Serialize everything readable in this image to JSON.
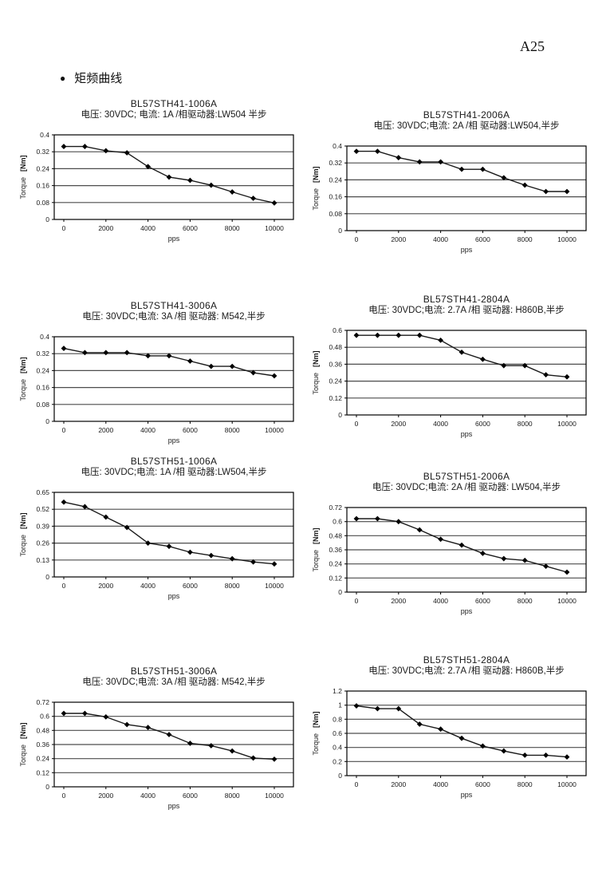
{
  "page": {
    "page_number": "A25",
    "bullet": "●",
    "section_title": "矩频曲线"
  },
  "chart_data": [
    {
      "type": "line",
      "title": "BL57STH41-1006A",
      "subtitle": "电压: 30VDC; 电流: 1A /相驱动器:LW504 半步",
      "xlabel": "pps",
      "ylabel": "Torque",
      "ylabel_unit": "[Nm]",
      "x": [
        0,
        1000,
        2000,
        3000,
        4000,
        5000,
        6000,
        7000,
        8000,
        9000,
        10000
      ],
      "values": [
        0.345,
        0.345,
        0.325,
        0.315,
        0.25,
        0.2,
        0.185,
        0.162,
        0.13,
        0.1,
        0.078
      ],
      "ylim": [
        0,
        0.4
      ],
      "yticks": [
        0,
        0.08,
        0.16,
        0.24,
        0.32,
        0.4
      ],
      "xticks": [
        0,
        2000,
        4000,
        6000,
        8000,
        10000
      ],
      "grid": "horizontal",
      "legend": "none",
      "marker": "diamond",
      "line_color": "#000000"
    },
    {
      "type": "line",
      "title": "BL57STH41-2006A",
      "subtitle": "电压: 30VDC;电流: 2A /相 驱动器:LW504,半步",
      "xlabel": "pps",
      "ylabel": "Torque",
      "ylabel_unit": "[Nm]",
      "x": [
        0,
        1000,
        2000,
        3000,
        4000,
        5000,
        6000,
        7000,
        8000,
        9000,
        10000
      ],
      "values": [
        0.375,
        0.375,
        0.345,
        0.325,
        0.325,
        0.29,
        0.29,
        0.25,
        0.215,
        0.185,
        0.185
      ],
      "ylim": [
        0,
        0.4
      ],
      "yticks": [
        0,
        0.08,
        0.16,
        0.24,
        0.32,
        0.4
      ],
      "xticks": [
        0,
        2000,
        4000,
        6000,
        8000,
        10000
      ],
      "grid": "horizontal",
      "legend": "none",
      "marker": "diamond",
      "line_color": "#000000"
    },
    {
      "type": "line",
      "title": "BL57STH41-3006A",
      "subtitle": "电压: 30VDC;电流: 3A /相  驱动器: M542,半步",
      "xlabel": "pps",
      "ylabel": "Torque",
      "ylabel_unit": "[Nm]",
      "x": [
        0,
        1000,
        2000,
        3000,
        4000,
        5000,
        6000,
        7000,
        8000,
        9000,
        10000
      ],
      "values": [
        0.345,
        0.325,
        0.325,
        0.325,
        0.31,
        0.31,
        0.285,
        0.26,
        0.26,
        0.23,
        0.215
      ],
      "ylim": [
        0,
        0.4
      ],
      "yticks": [
        0,
        0.08,
        0.16,
        0.24,
        0.32,
        0.4
      ],
      "xticks": [
        0,
        2000,
        4000,
        6000,
        8000,
        10000
      ],
      "grid": "horizontal",
      "legend": "none",
      "marker": "diamond",
      "line_color": "#000000"
    },
    {
      "type": "line",
      "title": "BL57STH41-2804A",
      "subtitle": "电压: 30VDC;电流: 2.7A /相 驱动器: H860B,半步",
      "xlabel": "pps",
      "ylabel": "Torque",
      "ylabel_unit": "[Nm]",
      "x": [
        0,
        1000,
        2000,
        3000,
        4000,
        5000,
        6000,
        7000,
        8000,
        9000,
        10000
      ],
      "values": [
        0.565,
        0.565,
        0.565,
        0.565,
        0.53,
        0.445,
        0.395,
        0.35,
        0.35,
        0.285,
        0.27
      ],
      "ylim": [
        0,
        0.6
      ],
      "yticks": [
        0,
        0.12,
        0.24,
        0.36,
        0.48,
        0.6
      ],
      "xticks": [
        0,
        2000,
        4000,
        6000,
        8000,
        10000
      ],
      "grid": "horizontal",
      "legend": "none",
      "marker": "diamond",
      "line_color": "#000000"
    },
    {
      "type": "line",
      "title": "BL57STH51-1006A",
      "subtitle": "电压: 30VDC;电流: 1A /相  驱动器:LW504,半步",
      "xlabel": "pps",
      "ylabel": "Torque",
      "ylabel_unit": "[Nm]",
      "x": [
        0,
        1000,
        2000,
        3000,
        4000,
        5000,
        6000,
        7000,
        8000,
        9000,
        10000
      ],
      "values": [
        0.575,
        0.54,
        0.46,
        0.38,
        0.26,
        0.235,
        0.19,
        0.165,
        0.14,
        0.115,
        0.1
      ],
      "ylim": [
        0,
        0.65
      ],
      "yticks": [
        0,
        0.13,
        0.26,
        0.39,
        0.52,
        0.65
      ],
      "xticks": [
        0,
        2000,
        4000,
        6000,
        8000,
        10000
      ],
      "grid": "horizontal",
      "legend": "none",
      "marker": "diamond",
      "line_color": "#000000"
    },
    {
      "type": "line",
      "title": "BL57STH51-2006A",
      "subtitle": "电压: 30VDC;电流: 2A /相  驱动器: LW504,半步",
      "xlabel": "pps",
      "ylabel": "Torque",
      "ylabel_unit": "[Nm]",
      "x": [
        0,
        1000,
        2000,
        3000,
        4000,
        5000,
        6000,
        7000,
        8000,
        9000,
        10000
      ],
      "values": [
        0.625,
        0.625,
        0.6,
        0.53,
        0.45,
        0.4,
        0.33,
        0.285,
        0.27,
        0.22,
        0.17
      ],
      "ylim": [
        0,
        0.72
      ],
      "yticks": [
        0,
        0.12,
        0.24,
        0.36,
        0.48,
        0.6,
        0.72
      ],
      "xticks": [
        0,
        2000,
        4000,
        6000,
        8000,
        10000
      ],
      "grid": "horizontal",
      "legend": "none",
      "marker": "diamond",
      "line_color": "#000000"
    },
    {
      "type": "line",
      "title": "BL57STH51-3006A",
      "subtitle": "电压: 30VDC;电流: 3A /相  驱动器: M542,半步",
      "xlabel": "pps",
      "ylabel": "Torque",
      "ylabel_unit": "[Nm]",
      "x": [
        0,
        1000,
        2000,
        3000,
        4000,
        5000,
        6000,
        7000,
        8000,
        9000,
        10000
      ],
      "values": [
        0.625,
        0.625,
        0.595,
        0.53,
        0.505,
        0.445,
        0.37,
        0.35,
        0.305,
        0.245,
        0.235
      ],
      "ylim": [
        0,
        0.72
      ],
      "yticks": [
        0,
        0.12,
        0.24,
        0.36,
        0.48,
        0.6,
        0.72
      ],
      "xticks": [
        0,
        2000,
        4000,
        6000,
        8000,
        10000
      ],
      "grid": "horizontal",
      "legend": "none",
      "marker": "diamond",
      "line_color": "#000000"
    },
    {
      "type": "line",
      "title": "BL57STH51-2804A",
      "subtitle": "电压: 30VDC;电流: 2.7A /相  驱动器: H860B,半步",
      "xlabel": "pps",
      "ylabel": "Torque",
      "ylabel_unit": "[Nm]",
      "x": [
        0,
        1000,
        2000,
        3000,
        4000,
        5000,
        6000,
        7000,
        8000,
        9000,
        10000
      ],
      "values": [
        0.99,
        0.95,
        0.95,
        0.73,
        0.66,
        0.53,
        0.42,
        0.35,
        0.29,
        0.29,
        0.265
      ],
      "ylim": [
        0,
        1.2
      ],
      "yticks": [
        0,
        0.2,
        0.4,
        0.6,
        0.8,
        1,
        1.2
      ],
      "xticks": [
        0,
        2000,
        4000,
        6000,
        8000,
        10000
      ],
      "grid": "horizontal",
      "legend": "none",
      "marker": "diamond",
      "line_color": "#000000"
    }
  ]
}
